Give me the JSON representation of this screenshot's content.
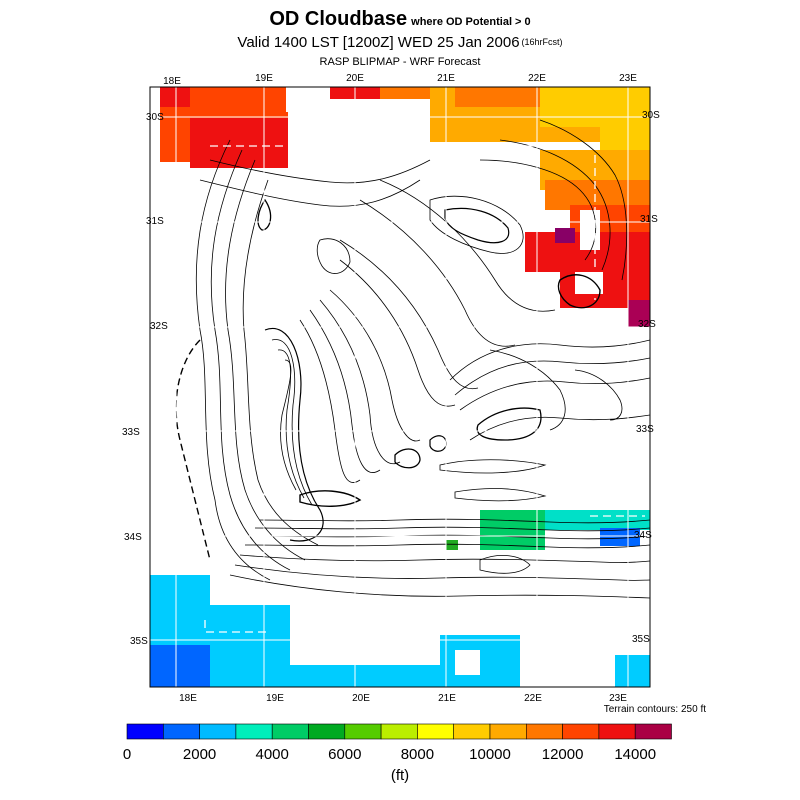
{
  "header": {
    "title": "OD Cloudbase",
    "title_suffix": "where OD Potential > 0",
    "valid": "Valid 1400 LST [1200Z] WED 25 Jan 2006",
    "forecast_tag": "(16hrFcst)",
    "model": "RASP BLIPMAP - WRF Forecast"
  },
  "map": {
    "top_lon_labels": [
      "18E",
      "19E",
      "20E",
      "21E",
      "22E",
      "23E"
    ],
    "bottom_lon_labels": [
      "18E",
      "19E",
      "20E",
      "21E",
      "22E",
      "23E"
    ],
    "left_lat_labels": [
      "30S",
      "31S",
      "32S",
      "33S",
      "34S",
      "35S"
    ],
    "right_lat_labels": [
      "30S",
      "31S",
      "32S",
      "33S",
      "34S",
      "35S"
    ],
    "terrain_note": "Terrain contours: 250 ft",
    "field_colors": {
      "red": "#ee1111",
      "red_orange": "#ff4400",
      "orange": "#ff7700",
      "amber": "#ffaa00",
      "gold": "#ffcc00",
      "sky": "#00ccff",
      "blue": "#0066ff",
      "teal": "#00e0c8",
      "green": "#00cc66",
      "dark_green": "#22aa22",
      "maroon": "#aa0055",
      "purple": "#880066"
    }
  },
  "colorbar": {
    "colors": [
      "#0000ff",
      "#0066ff",
      "#00bbff",
      "#00eebb",
      "#00cc66",
      "#00aa22",
      "#55cc00",
      "#bbee00",
      "#ffff00",
      "#ffcc00",
      "#ffaa00",
      "#ff7700",
      "#ff4400",
      "#ee1111",
      "#aa0044"
    ],
    "tick_labels": [
      "0",
      "2000",
      "4000",
      "6000",
      "8000",
      "10000",
      "12000",
      "14000"
    ],
    "unit": "(ft)"
  }
}
